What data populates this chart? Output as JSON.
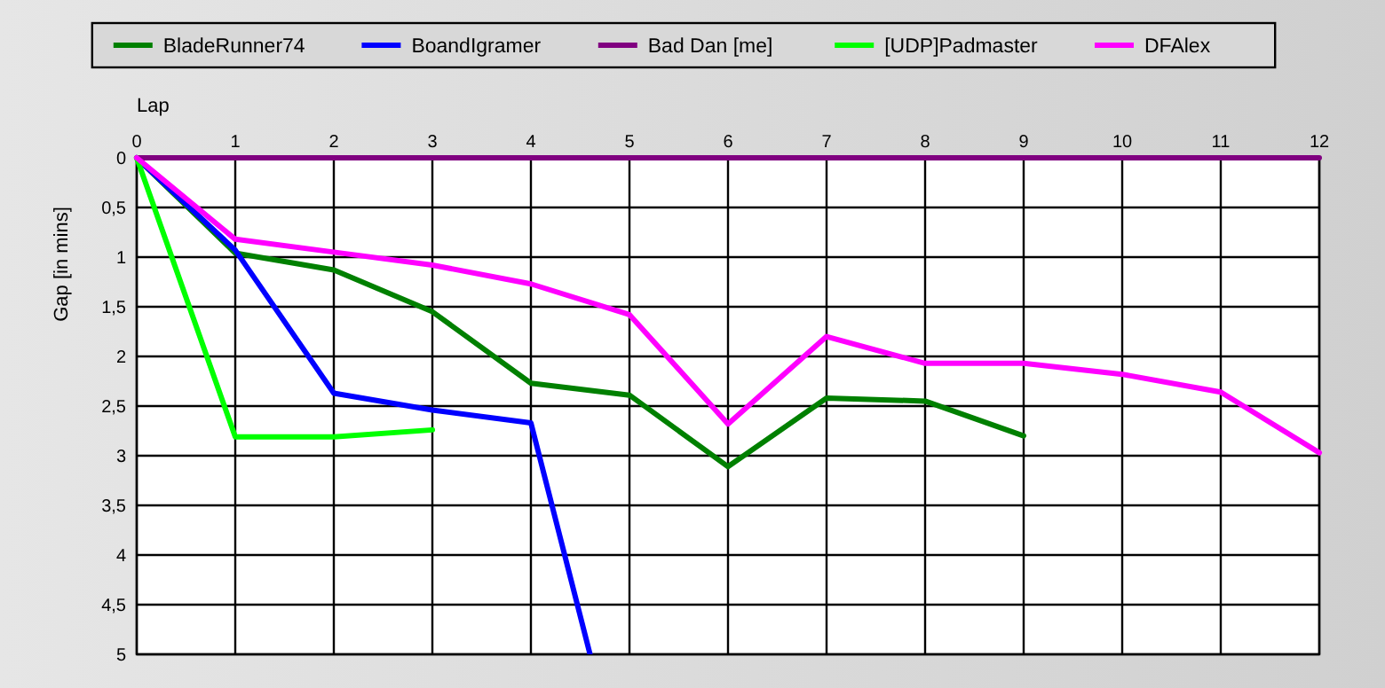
{
  "chart_data": {
    "type": "line",
    "xlabel": "Lap",
    "ylabel": "Gap [in mins]",
    "xlim": [
      0,
      12
    ],
    "xticks": [
      0,
      1,
      2,
      3,
      4,
      5,
      6,
      7,
      8,
      9,
      10,
      11,
      12
    ],
    "ylim": [
      5,
      0
    ],
    "yticks": [
      0,
      {
        "value": 0.5,
        "label": "0,5"
      },
      1,
      {
        "value": 1.5,
        "label": "1,5"
      },
      2,
      {
        "value": 2.5,
        "label": "2,5"
      },
      3,
      {
        "value": 3.5,
        "label": "3,5"
      },
      4,
      {
        "value": 4.5,
        "label": "4,5"
      },
      5
    ],
    "grid": true,
    "legend": "top",
    "marker": "none",
    "line_style": "solid",
    "series": [
      {
        "name": "BladeRunner74",
        "color": "#008000",
        "x": [
          0,
          1,
          2,
          3,
          4,
          5,
          6,
          7,
          8,
          9
        ],
        "values": [
          0,
          0.96,
          1.13,
          1.55,
          2.27,
          2.39,
          3.11,
          2.42,
          2.45,
          2.8
        ]
      },
      {
        "name": "BoandIgramer",
        "color": "#0000ff",
        "x": [
          0,
          1,
          2,
          3,
          4,
          4.6
        ],
        "values": [
          0,
          0.93,
          2.37,
          2.54,
          2.67,
          5
        ]
      },
      {
        "name": "Bad Dan [me]",
        "color": "#800080",
        "x": [
          0,
          1,
          2,
          3,
          4,
          5,
          6,
          7,
          8,
          9,
          10,
          11,
          12
        ],
        "values": [
          0,
          0,
          0,
          0,
          0,
          0,
          0,
          0,
          0,
          0,
          0,
          0,
          0
        ]
      },
      {
        "name": "[UDP]Padmaster",
        "color": "#00ff00",
        "x": [
          0,
          1,
          2,
          3
        ],
        "values": [
          0,
          2.81,
          2.81,
          2.74
        ]
      },
      {
        "name": "DFAlex",
        "color": "#ff00ff",
        "x": [
          0,
          1,
          2,
          3,
          4,
          5,
          6,
          7,
          8,
          9,
          10,
          11,
          12
        ],
        "values": [
          0,
          0.82,
          0.95,
          1.08,
          1.27,
          1.58,
          2.68,
          1.8,
          2.07,
          2.07,
          2.18,
          2.36,
          2.97
        ]
      }
    ]
  }
}
